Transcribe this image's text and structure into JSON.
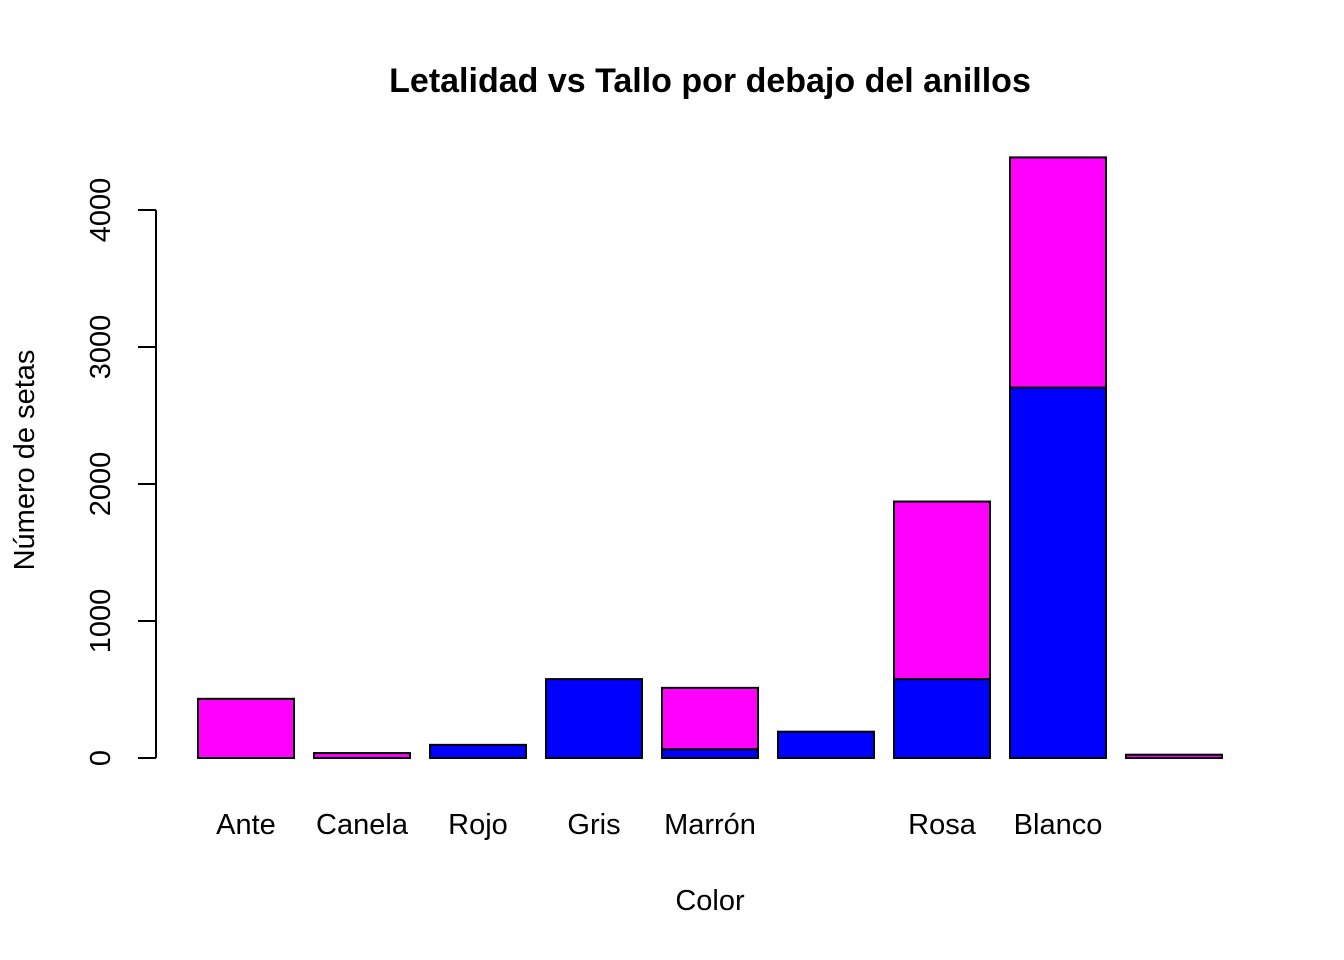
{
  "chart_data": {
    "type": "bar",
    "stacked": true,
    "title": "Letalidad vs Tallo por debajo del anillos",
    "xlabel": "Color",
    "ylabel": "Número de setas",
    "categories": [
      "Ante",
      "Canela",
      "Rojo",
      "Gris",
      "Marrón",
      "",
      "Rosa",
      "Blanco",
      ""
    ],
    "series": [
      {
        "color": "#0000FF",
        "values": [
          0,
          0,
          96,
          576,
          64,
          192,
          576,
          2704,
          0
        ]
      },
      {
        "color": "#FF00FF",
        "values": [
          432,
          36,
          0,
          0,
          448,
          0,
          1296,
          1680,
          24
        ]
      }
    ],
    "yticks": [
      0,
      1000,
      2000,
      3000,
      4000
    ],
    "ylim": [
      0,
      4400
    ],
    "grid": false,
    "legend": "none"
  }
}
